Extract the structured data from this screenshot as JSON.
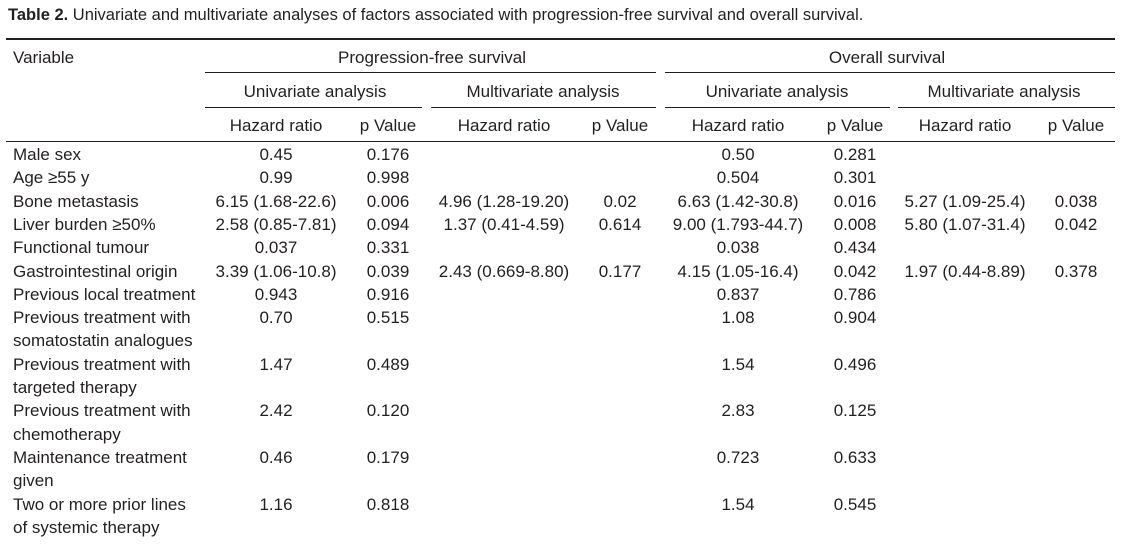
{
  "caption": {
    "label": "Table 2.",
    "text": " Univariate and multivariate analyses of factors associated with progression-free survival and overall survival."
  },
  "header": {
    "variable": "Variable",
    "pfs": "Progression-free survival",
    "os": "Overall survival",
    "univariate": "Univariate analysis",
    "multivariate": "Multivariate analysis",
    "hazard_ratio": "Hazard ratio",
    "p_value": "p Value"
  },
  "rows": [
    {
      "variable": [
        "Male sex"
      ],
      "values": [
        "0.45",
        "0.176",
        "",
        "",
        "0.50",
        "0.281",
        "",
        ""
      ]
    },
    {
      "variable": [
        "Age ≥55 y"
      ],
      "values": [
        "0.99",
        "0.998",
        "",
        "",
        "0.504",
        "0.301",
        "",
        ""
      ]
    },
    {
      "variable": [
        "Bone metastasis"
      ],
      "values": [
        "6.15 (1.68-22.6)",
        "0.006",
        "4.96 (1.28-19.20)",
        "0.02",
        "6.63 (1.42-30.8)",
        "0.016",
        "5.27 (1.09-25.4)",
        "0.038"
      ]
    },
    {
      "variable": [
        "Liver burden ≥50%"
      ],
      "values": [
        "2.58 (0.85-7.81)",
        "0.094",
        "1.37 (0.41-4.59)",
        "0.614",
        "9.00 (1.793-44.7)",
        "0.008",
        "5.80 (1.07-31.4)",
        "0.042"
      ]
    },
    {
      "variable": [
        "Functional tumour"
      ],
      "values": [
        "0.037",
        "0.331",
        "",
        "",
        "0.038",
        "0.434",
        "",
        ""
      ]
    },
    {
      "variable": [
        "Gastrointestinal origin"
      ],
      "values": [
        "3.39 (1.06-10.8)",
        "0.039",
        "2.43 (0.669-8.80)",
        "0.177",
        "4.15 (1.05-16.4)",
        "0.042",
        "1.97 (0.44-8.89)",
        "0.378"
      ]
    },
    {
      "variable": [
        "Previous local treatment"
      ],
      "values": [
        "0.943",
        "0.916",
        "",
        "",
        "0.837",
        "0.786",
        "",
        ""
      ]
    },
    {
      "variable": [
        "Previous treatment with",
        "somatostatin analogues"
      ],
      "values": [
        "0.70",
        "0.515",
        "",
        "",
        "1.08",
        "0.904",
        "",
        ""
      ]
    },
    {
      "variable": [
        "Previous treatment with",
        "targeted therapy"
      ],
      "values": [
        "1.47",
        "0.489",
        "",
        "",
        "1.54",
        "0.496",
        "",
        ""
      ]
    },
    {
      "variable": [
        "Previous treatment with",
        "chemotherapy"
      ],
      "values": [
        "2.42",
        "0.120",
        "",
        "",
        "2.83",
        "0.125",
        "",
        ""
      ]
    },
    {
      "variable": [
        "Maintenance treatment",
        "given"
      ],
      "values": [
        "0.46",
        "0.179",
        "",
        "",
        "0.723",
        "0.633",
        "",
        ""
      ]
    },
    {
      "variable": [
        "Two or more prior lines",
        "of systemic therapy"
      ],
      "values": [
        "1.16",
        "0.818",
        "",
        "",
        "1.54",
        "0.545",
        "",
        ""
      ]
    }
  ]
}
